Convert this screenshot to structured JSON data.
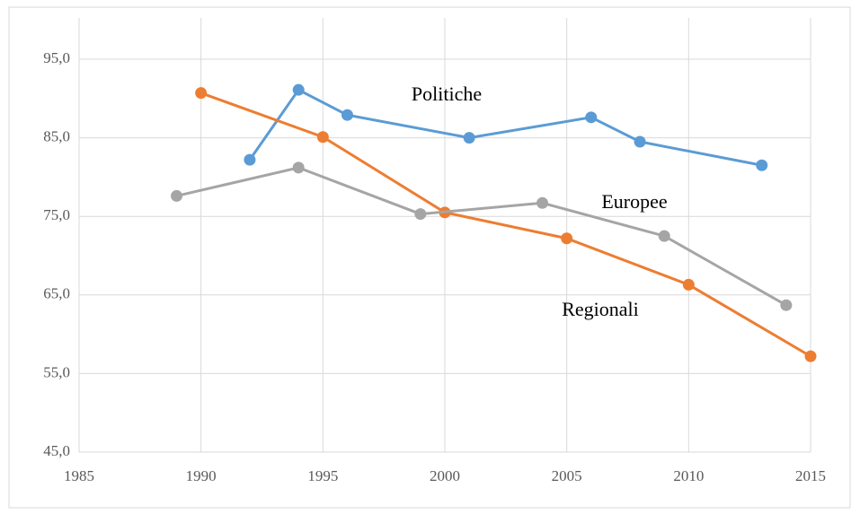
{
  "chart_data": {
    "type": "line",
    "xlim": [
      1985,
      2015
    ],
    "xticks": [
      1985,
      1990,
      1995,
      2000,
      2005,
      2010,
      2015
    ],
    "ylim": [
      45,
      95
    ],
    "yticks": [
      {
        "value": 45,
        "label": "45,0"
      },
      {
        "value": 55,
        "label": "55,0"
      },
      {
        "value": 65,
        "label": "65,0"
      },
      {
        "value": 75,
        "label": "75,0"
      },
      {
        "value": 85,
        "label": "85,0"
      },
      {
        "value": 95,
        "label": "95,0"
      }
    ],
    "grid": true,
    "series": [
      {
        "name": "Politiche",
        "color": "#5b9bd5",
        "x": [
          1992,
          1994,
          1996,
          2001,
          2006,
          2008,
          2013
        ],
        "values": [
          82.2,
          91.1,
          87.9,
          85.0,
          87.6,
          84.5,
          81.5
        ]
      },
      {
        "name": "Regionali",
        "color": "#ed7d31",
        "x": [
          1990,
          1995,
          2000,
          2005,
          2010,
          2015
        ],
        "values": [
          90.7,
          85.1,
          75.5,
          72.2,
          66.3,
          57.2
        ]
      },
      {
        "name": "Europee",
        "color": "#a5a5a5",
        "x": [
          1989,
          1994,
          1999,
          2004,
          2009,
          2014
        ],
        "values": [
          77.6,
          81.2,
          75.3,
          76.7,
          72.5,
          63.7
        ]
      }
    ]
  }
}
